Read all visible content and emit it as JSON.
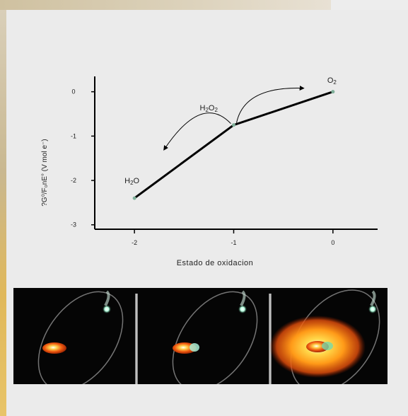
{
  "chart_data": {
    "type": "line",
    "ylabel": "?G⁰/F₀nE° (V mol e⁻)",
    "xlabel": "Estado de oxidacion",
    "xlim": [
      -2.4,
      0.45
    ],
    "ylim": [
      -3.1,
      0.25
    ],
    "x_ticks": [
      "-2",
      "-1",
      "0"
    ],
    "y_ticks": [
      "0",
      "-1",
      "-2",
      "-3"
    ],
    "series": [
      {
        "x": [
          -2,
          -1,
          0
        ],
        "y": [
          -2.4,
          -0.75,
          0
        ]
      }
    ],
    "points": [
      {
        "species": "H2O",
        "x": -2,
        "y": -2.4
      },
      {
        "species": "H2O2",
        "x": -1,
        "y": -0.75
      },
      {
        "species": "O2",
        "x": 0,
        "y": 0
      }
    ],
    "grid": false
  },
  "labels": {
    "h2o": {
      "main": "H",
      "sub": "2",
      "tail": "O"
    },
    "h2o2": {
      "main": "H",
      "sub": "2",
      "mid": "O",
      "sub2": "2"
    },
    "o2": {
      "main": "O",
      "sub": "2"
    }
  },
  "colors": {
    "line": "#000000",
    "marker": "#7fb09a",
    "orbital_strip_bg": "#050505"
  }
}
